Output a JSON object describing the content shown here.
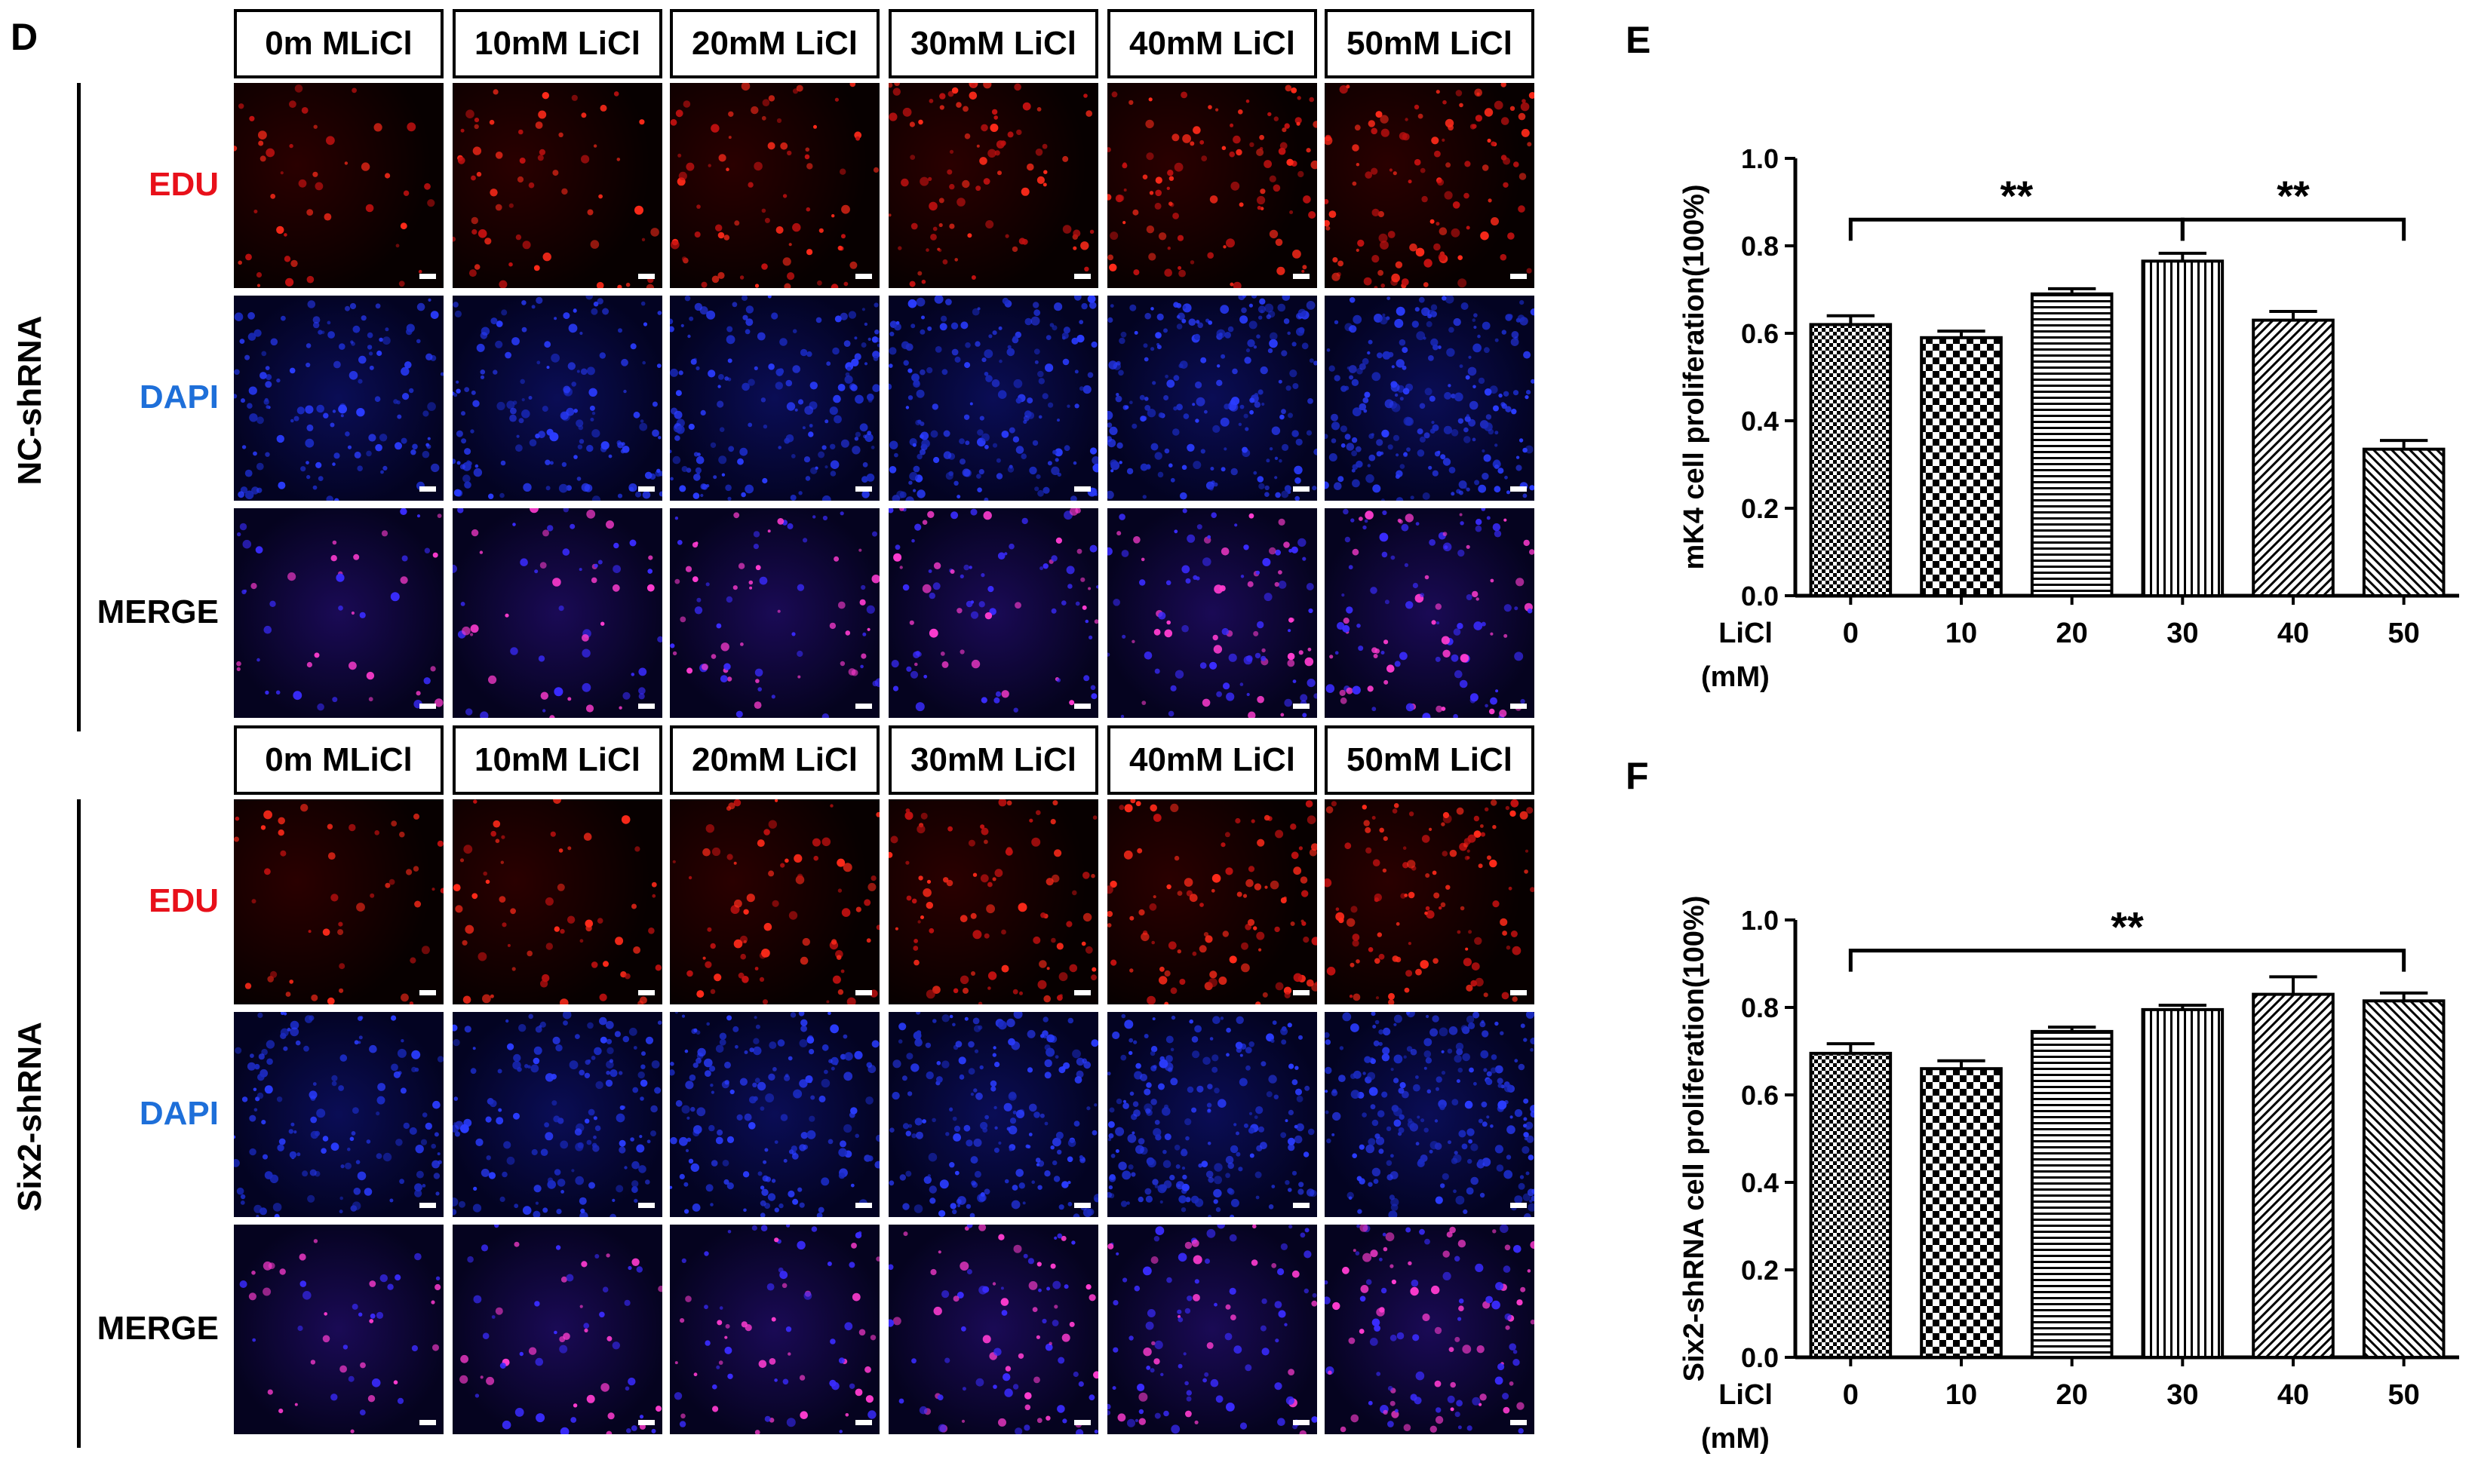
{
  "panel_D": {
    "letter": "D",
    "column_labels": [
      "0m MLiCl",
      "10mM LiCl",
      "20mM LiCl",
      "30mM LiCl",
      "40mM LiCl",
      "50mM LiCl"
    ],
    "groups": [
      {
        "name": "NC-shRNA",
        "rows": [
          {
            "label": "EDU",
            "color": "#e8101a"
          },
          {
            "label": "DAPI",
            "color": "#1e6fd9"
          },
          {
            "label": "MERGE",
            "color": "#000000"
          }
        ]
      },
      {
        "name": "Six2-shRNA",
        "rows": [
          {
            "label": "EDU",
            "color": "#e8101a"
          },
          {
            "label": "DAPI",
            "color": "#1e6fd9"
          },
          {
            "label": "MERGE",
            "color": "#000000"
          }
        ]
      }
    ]
  },
  "panel_E": {
    "letter": "E"
  },
  "panel_F": {
    "letter": "F"
  },
  "chart_data": [
    {
      "panel": "E",
      "type": "bar",
      "categories": [
        "0",
        "10",
        "20",
        "30",
        "40",
        "50"
      ],
      "values": [
        0.62,
        0.59,
        0.69,
        0.765,
        0.63,
        0.335
      ],
      "errors": [
        0.02,
        0.015,
        0.012,
        0.018,
        0.02,
        0.02
      ],
      "patterns": [
        "checker-fine",
        "checker-coarse",
        "horizontal",
        "vertical",
        "diagonal-right",
        "diagonal-left"
      ],
      "ylabel": "mK4 cell proliferation(100%)",
      "xlabel_prefix": "LiCl",
      "xlabel_unit": "(mM)",
      "ylim": [
        0,
        1.0
      ],
      "yticks": [
        "0.0",
        "0.2",
        "0.4",
        "0.6",
        "0.8",
        "1.0"
      ],
      "significance": [
        {
          "from": 0,
          "to": 3,
          "label": "**",
          "height": 0.86
        },
        {
          "from": 3,
          "to": 5,
          "label": "**",
          "height": 0.86
        }
      ]
    },
    {
      "panel": "F",
      "type": "bar",
      "categories": [
        "0",
        "10",
        "20",
        "30",
        "40",
        "50"
      ],
      "values": [
        0.695,
        0.66,
        0.745,
        0.795,
        0.83,
        0.815
      ],
      "errors": [
        0.022,
        0.018,
        0.01,
        0.01,
        0.04,
        0.018
      ],
      "patterns": [
        "checker-fine",
        "checker-coarse",
        "horizontal",
        "vertical",
        "diagonal-right",
        "diagonal-left"
      ],
      "ylabel": "Six2-shRNA cell proliferation(100%)",
      "xlabel_prefix": "LiCl",
      "xlabel_unit": "(mM)",
      "ylim": [
        0,
        1.0
      ],
      "yticks": [
        "0.0",
        "0.2",
        "0.4",
        "0.6",
        "0.8",
        "1.0"
      ],
      "significance": [
        {
          "from": 0,
          "to": 5,
          "label": "**",
          "height": 0.93
        }
      ]
    }
  ]
}
